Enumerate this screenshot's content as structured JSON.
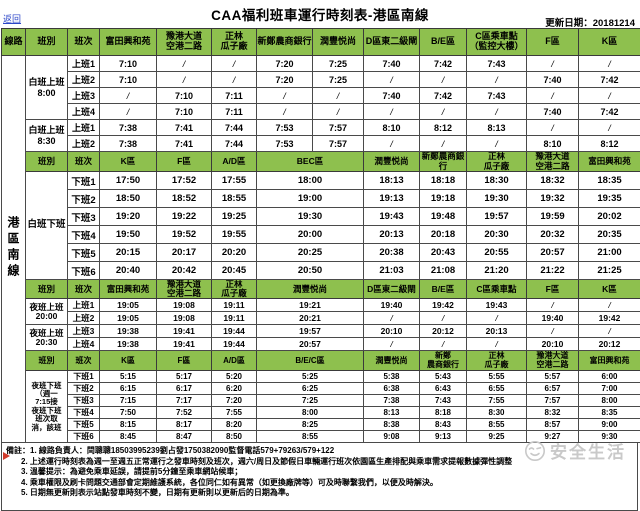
{
  "page": {
    "back_link": "返回",
    "title": "CAA福利班車運行時刻表-港區南線",
    "update_date": "更新日期：20181214",
    "watermark_text": "安全生活"
  },
  "colors": {
    "header_green": "#8ec04e",
    "grid_line": "#4a4a4a",
    "link_blue": "#2b46c8",
    "watermark_gray": "#c9c9c9",
    "marker_red": "#d03a2b"
  },
  "table": {
    "corner_header": "線路",
    "line_name": "港區南線",
    "sections": [
      {
        "cls": "sa",
        "header": [
          {
            "t": "班別",
            "s": 1
          },
          {
            "t": "班次",
            "s": 1
          },
          {
            "t": "富田興和苑",
            "s": 1
          },
          {
            "t": "豫港大道\n空港二路",
            "s": 1
          },
          {
            "t": "正林\n瓜子廠",
            "s": 1
          },
          {
            "t": "新鄭農商銀行",
            "s": 1
          },
          {
            "t": "潤豐悦尚",
            "s": 1
          },
          {
            "t": "D區東二級閘",
            "s": 1
          },
          {
            "t": "B/E區",
            "s": 1
          },
          {
            "t": "C區乘車點\n（監控大樓）",
            "s": 1
          },
          {
            "t": "F區",
            "s": 1
          },
          {
            "t": "K區",
            "s": 1
          }
        ],
        "tspans": [
          1,
          1,
          1,
          1,
          1,
          1,
          1,
          1,
          1,
          1
        ],
        "groups": [
          {
            "label": "白班上班\n8:00",
            "rows": [
              [
                "上班1",
                "7:10",
                "/",
                "/",
                "7:20",
                "7:25",
                "7:40",
                "7:42",
                "7:43",
                "/",
                "/"
              ],
              [
                "上班2",
                "7:10",
                "/",
                "/",
                "7:20",
                "7:25",
                "/",
                "/",
                "/",
                "7:40",
                "7:42"
              ],
              [
                "上班3",
                "/",
                "7:10",
                "7:11",
                "/",
                "/",
                "7:40",
                "7:42",
                "7:43",
                "/",
                "/"
              ],
              [
                "上班4",
                "/",
                "7:10",
                "7:11",
                "/",
                "/",
                "/",
                "/",
                "/",
                "7:40",
                "7:42"
              ]
            ]
          },
          {
            "label": "白班上班\n8:30",
            "rows": [
              [
                "上班1",
                "7:38",
                "7:41",
                "7:44",
                "7:53",
                "7:57",
                "8:10",
                "8:12",
                "8:13",
                "/",
                "/"
              ],
              [
                "上班2",
                "7:38",
                "7:41",
                "7:44",
                "7:53",
                "7:57",
                "/",
                "/",
                "/",
                "8:10",
                "8:12"
              ]
            ]
          }
        ]
      },
      {
        "cls": "sb",
        "header": [
          {
            "t": "班別",
            "s": 1
          },
          {
            "t": "班次",
            "s": 1
          },
          {
            "t": "K區",
            "s": 1
          },
          {
            "t": "F區",
            "s": 1
          },
          {
            "t": "A/D區",
            "s": 1
          },
          {
            "t": "BEC區",
            "s": 2
          },
          {
            "t": "潤豐悦尚",
            "s": 1
          },
          {
            "t": "新鄭農商銀行",
            "s": 1
          },
          {
            "t": "正林\n瓜子廠",
            "s": 1
          },
          {
            "t": "豫港大道\n空港二路",
            "s": 1
          },
          {
            "t": "富田興和苑",
            "s": 1
          }
        ],
        "tspans": [
          1,
          1,
          1,
          2,
          1,
          1,
          1,
          1,
          1
        ],
        "groups": [
          {
            "label": "白班下班",
            "rows": [
              [
                "下班1",
                "17:50",
                "17:52",
                "17:55",
                "18:00",
                "18:13",
                "18:18",
                "18:30",
                "18:32",
                "18:35"
              ],
              [
                "下班2",
                "18:50",
                "18:52",
                "18:55",
                "19:00",
                "19:13",
                "19:18",
                "19:30",
                "19:32",
                "19:35"
              ],
              [
                "下班3",
                "19:20",
                "19:22",
                "19:25",
                "19:30",
                "19:43",
                "19:48",
                "19:57",
                "19:59",
                "20:02"
              ],
              [
                "下班4",
                "19:50",
                "19:52",
                "19:55",
                "20:00",
                "20:13",
                "20:18",
                "20:30",
                "20:32",
                "20:35"
              ],
              [
                "下班5",
                "20:15",
                "20:17",
                "20:20",
                "20:25",
                "20:38",
                "20:43",
                "20:55",
                "20:57",
                "21:00"
              ],
              [
                "下班6",
                "20:40",
                "20:42",
                "20:45",
                "20:50",
                "21:03",
                "21:08",
                "21:20",
                "21:22",
                "21:25"
              ]
            ]
          }
        ]
      },
      {
        "cls": "sc",
        "header": [
          {
            "t": "班別",
            "s": 1
          },
          {
            "t": "班次",
            "s": 1
          },
          {
            "t": "富田興和苑",
            "s": 1
          },
          {
            "t": "豫港大道\n空港二路",
            "s": 1
          },
          {
            "t": "正林\n瓜子廠",
            "s": 1
          },
          {
            "t": "潤豐悦尚",
            "s": 2
          },
          {
            "t": "D區東二級閘",
            "s": 1
          },
          {
            "t": "B/E區",
            "s": 1
          },
          {
            "t": "C區乘車點",
            "s": 1
          },
          {
            "t": "F區",
            "s": 1
          },
          {
            "t": "K區",
            "s": 1
          }
        ],
        "tspans": [
          1,
          1,
          1,
          2,
          1,
          1,
          1,
          1,
          1
        ],
        "groups": [
          {
            "label": "夜班上班\n20:00",
            "rows": [
              [
                "上班1",
                "19:05",
                "19:08",
                "19:11",
                "19:21",
                "19:40",
                "19:42",
                "19:43",
                "/",
                "/"
              ],
              [
                "上班2",
                "19:05",
                "19:08",
                "19:11",
                "20:21",
                "/",
                "/",
                "/",
                "19:40",
                "19:42"
              ]
            ]
          },
          {
            "label": "夜班上班\n20:30",
            "rows": [
              [
                "上班3",
                "19:38",
                "19:41",
                "19:44",
                "19:57",
                "20:10",
                "20:12",
                "20:13",
                "/",
                "/"
              ],
              [
                "上班4",
                "19:38",
                "19:41",
                "19:44",
                "20:57",
                "/",
                "/",
                "/",
                "20:10",
                "20:12"
              ]
            ]
          }
        ]
      },
      {
        "cls": "sd",
        "header": [
          {
            "t": "班別",
            "s": 1
          },
          {
            "t": "班次",
            "s": 1
          },
          {
            "t": "K區",
            "s": 1
          },
          {
            "t": "F區",
            "s": 1
          },
          {
            "t": "A/D區",
            "s": 1
          },
          {
            "t": "B/E/C區",
            "s": 2
          },
          {
            "t": "潤豐悦尚",
            "s": 1
          },
          {
            "t": "新鄭\n農商銀行",
            "s": 1
          },
          {
            "t": "正林\n瓜子廠",
            "s": 1
          },
          {
            "t": "豫港大道\n空港二路",
            "s": 1
          },
          {
            "t": "富田興和苑",
            "s": 1
          }
        ],
        "tspans": [
          1,
          1,
          1,
          2,
          1,
          1,
          1,
          1,
          1
        ],
        "groups": [
          {
            "label": "夜班下班\n（週一\n7:15接\n夜班下班\n班次取\n消，該班",
            "rows": [
              [
                "下班1",
                "5:15",
                "5:17",
                "5:20",
                "5:25",
                "5:38",
                "5:43",
                "5:55",
                "5:57",
                "6:00"
              ],
              [
                "下班2",
                "6:15",
                "6:17",
                "6:20",
                "6:25",
                "6:38",
                "6:43",
                "6:55",
                "6:57",
                "7:00"
              ],
              [
                "下班3",
                "7:15",
                "7:17",
                "7:20",
                "7:25",
                "7:38",
                "7:43",
                "7:55",
                "7:57",
                "8:00"
              ],
              [
                "下班4",
                "7:50",
                "7:52",
                "7:55",
                "8:00",
                "8:13",
                "8:18",
                "8:30",
                "8:32",
                "8:35"
              ],
              [
                "下班5",
                "8:15",
                "8:17",
                "8:20",
                "8:25",
                "8:38",
                "8:43",
                "8:55",
                "8:57",
                "9:00"
              ],
              [
                "下班6",
                "8:45",
                "8:47",
                "8:50",
                "8:55",
                "9:08",
                "9:13",
                "9:25",
                "9:27",
                "9:30"
              ]
            ]
          }
        ]
      }
    ]
  },
  "notes": [
    "備註：1. 線路負責人：閆聰聰18503995239劉占發1750382090監督電話579+79263/579+122",
    "2. 上述運行時刻表為週一至週五正常運行之發車時刻及班次，週六/周日及節假日車輛運行班次依園區生產排配與乘車需求提報數據彈性調整",
    "3. 溫馨提示：為避免乘車延誤，請提前5分鐘至乘車網站候車；",
    "4. 乘車權限及刷卡問題交通部會定期維護系統，各位同仁如有異常（如更換廠牌等）可及時聯繫我們，以便及時解決。",
    "5. 日期無更新則表示站點發車時刻不變，日期有更新則以更新后的日期為準。"
  ]
}
